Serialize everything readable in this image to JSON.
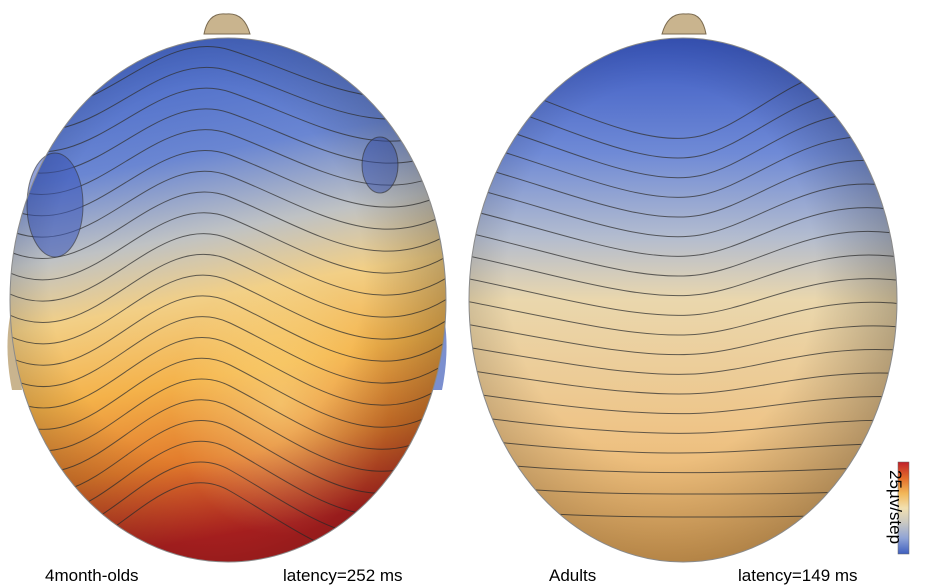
{
  "panels": [
    {
      "group": "4month-olds",
      "latency": "latency=252 ms"
    },
    {
      "group": "Adults",
      "latency": "latency=149 ms"
    }
  ],
  "color_scale": {
    "label": "25µv/step",
    "colors": [
      "#c0202a",
      "#e26a2a",
      "#f2b758",
      "#f2e0b0",
      "#c9c8c2",
      "#8fa3d6",
      "#3f5fbf"
    ]
  }
}
